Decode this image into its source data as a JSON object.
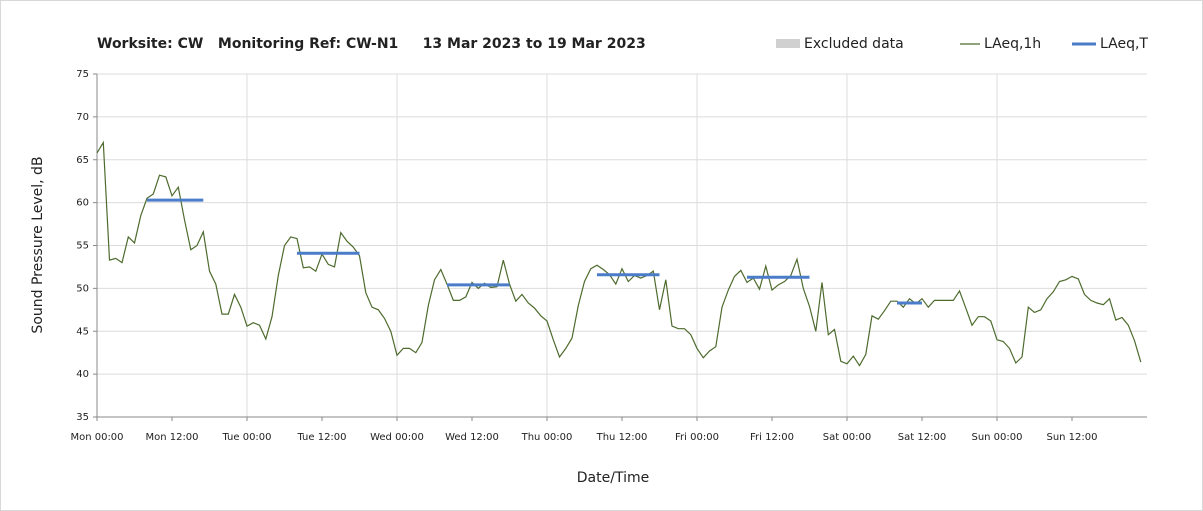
{
  "chart_data": {
    "type": "line",
    "title": "Worksite: CW   Monitoring Ref: CW-N1     13 Mar 2023 to 19 Mar 2023",
    "x_label": "Date/Time",
    "y_label": "Sound Pressure Level, dB",
    "xlim": [
      0,
      168
    ],
    "xticks": [
      {
        "value": 0,
        "label": "Mon 00:00"
      },
      {
        "value": 12,
        "label": "Mon 12:00"
      },
      {
        "value": 24,
        "label": "Tue 00:00"
      },
      {
        "value": 36,
        "label": "Tue 12:00"
      },
      {
        "value": 48,
        "label": "Wed 00:00"
      },
      {
        "value": 60,
        "label": "Wed 12:00"
      },
      {
        "value": 72,
        "label": "Thu 00:00"
      },
      {
        "value": 84,
        "label": "Thu 12:00"
      },
      {
        "value": 96,
        "label": "Fri 00:00"
      },
      {
        "value": 108,
        "label": "Fri 12:00"
      },
      {
        "value": 120,
        "label": "Sat 00:00"
      },
      {
        "value": 132,
        "label": "Sat 12:00"
      },
      {
        "value": 144,
        "label": "Sun 00:00"
      },
      {
        "value": 156,
        "label": "Sun 12:00"
      }
    ],
    "ylim": [
      35,
      75
    ],
    "yticks": [
      35,
      40,
      45,
      50,
      55,
      60,
      65,
      70,
      75
    ],
    "grid": true,
    "series": [
      {
        "name": "Excluded data",
        "color": "#d0d0d0",
        "x": [],
        "values": []
      },
      {
        "name": "LAeq,1h",
        "color": "#4e6b2e",
        "x": [
          0,
          1,
          2,
          3,
          4,
          5,
          6,
          7,
          8,
          9,
          10,
          11,
          12,
          13,
          14,
          15,
          16,
          17,
          18,
          19,
          20,
          21,
          22,
          23,
          24,
          25,
          26,
          27,
          28,
          29,
          30,
          31,
          32,
          33,
          34,
          35,
          36,
          37,
          38,
          39,
          40,
          41,
          42,
          43,
          44,
          45,
          46,
          47,
          48,
          49,
          50,
          51,
          52,
          53,
          54,
          55,
          56,
          57,
          58,
          59,
          60,
          61,
          62,
          63,
          64,
          65,
          66,
          67,
          68,
          69,
          70,
          71,
          72,
          73,
          74,
          75,
          76,
          77,
          78,
          79,
          80,
          81,
          82,
          83,
          84,
          85,
          86,
          87,
          88,
          89,
          90,
          91,
          92,
          93,
          94,
          95,
          96,
          97,
          98,
          99,
          100,
          101,
          102,
          103,
          104,
          105,
          106,
          107,
          108,
          109,
          110,
          111,
          112,
          113,
          114,
          115,
          116,
          117,
          118,
          119,
          120,
          121,
          122,
          123,
          124,
          125,
          126,
          127,
          128,
          129,
          130,
          131,
          132,
          133,
          134,
          135,
          136,
          137,
          138,
          139,
          140,
          141,
          142,
          143,
          144,
          145,
          146,
          147,
          148,
          149,
          150,
          151,
          152,
          153,
          154,
          155,
          156,
          157,
          158,
          159,
          160,
          161,
          162,
          163,
          164,
          165,
          166,
          167
        ],
        "values": [
          65.8,
          67,
          53.3,
          53.5,
          53,
          56,
          55.3,
          58.5,
          60.5,
          61,
          63.2,
          63,
          60.8,
          61.8,
          58,
          54.5,
          55,
          56.6,
          52,
          50.5,
          47,
          47,
          49.3,
          47.8,
          45.6,
          46,
          45.7,
          44.1,
          46.7,
          51.5,
          55,
          56,
          55.8,
          52.4,
          52.5,
          52,
          54,
          52.8,
          52.5,
          56.5,
          55.5,
          54.8,
          53.8,
          49.5,
          47.8,
          47.5,
          46.5,
          45,
          42.2,
          43,
          43,
          42.5,
          43.7,
          48,
          51,
          52.2,
          50.5,
          48.6,
          48.6,
          49,
          50.7,
          50,
          50.6,
          50.1,
          50.2,
          53.3,
          50.5,
          48.5,
          49.3,
          48.3,
          47.7,
          46.8,
          46.2,
          44,
          42,
          43,
          44.2,
          48,
          50.8,
          52.3,
          52.7,
          52.2,
          51.6,
          50.5,
          52.3,
          50.8,
          51.5,
          51.2,
          51.5,
          52,
          47.5,
          51,
          45.6,
          45.3,
          45.3,
          44.6,
          43,
          41.9,
          42.7,
          43.2,
          47.8,
          49.8,
          51.4,
          52.1,
          50.7,
          51.2,
          49.9,
          52.6,
          49.8,
          50.4,
          50.8,
          51.5,
          53.4,
          50,
          47.9,
          45,
          50.7,
          44.6,
          45.2,
          41.5,
          41.2,
          42.1,
          41,
          42.3,
          46.8,
          46.4,
          47.4,
          48.5,
          48.5,
          47.8,
          48.8,
          48.2,
          48.8,
          47.8,
          48.6,
          48.6,
          48.6,
          48.6,
          49.7,
          47.7,
          45.7,
          46.7,
          46.7,
          46.2,
          44,
          43.8,
          43,
          41.3,
          42,
          47.8,
          47.2,
          47.5,
          48.8,
          49.6,
          50.8,
          51,
          51.4,
          51.1,
          49.3,
          48.6,
          48.3,
          48.1,
          48.8,
          46.3,
          46.6,
          45.7,
          43.9,
          41.4
        ]
      },
      {
        "name": "LAeq,T",
        "color": "#4a7cc9",
        "x": [
          8,
          17,
          null,
          32,
          42,
          null,
          56,
          66,
          null,
          80,
          90,
          null,
          104,
          114,
          null,
          128,
          132
        ],
        "values": [
          60.3,
          60.3,
          null,
          54.1,
          54.1,
          null,
          50.4,
          50.4,
          null,
          51.6,
          51.6,
          null,
          51.3,
          51.3,
          null,
          48.3,
          48.3
        ]
      }
    ]
  }
}
